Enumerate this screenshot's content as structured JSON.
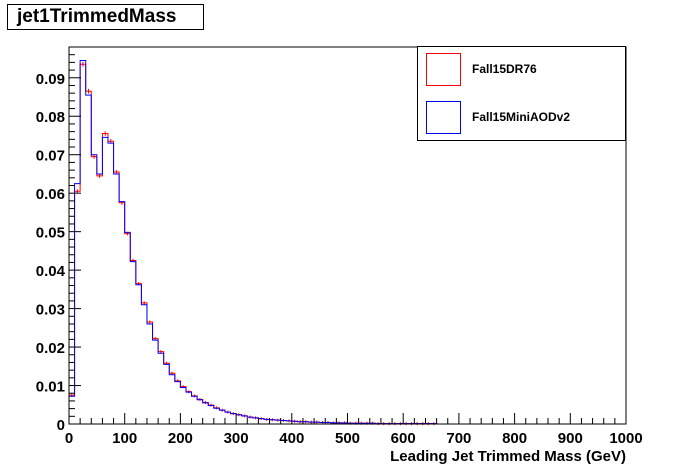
{
  "title": "jet1TrimmedMass",
  "chart_data": {
    "type": "histogram",
    "xlabel": "Leading Jet Trimmed Mass (GeV)",
    "ylabel": "",
    "xlim": [
      0,
      1000
    ],
    "ylim": [
      0,
      0.098
    ],
    "bin_width": 10,
    "x_ticks": [
      0,
      100,
      200,
      300,
      400,
      500,
      600,
      700,
      800,
      900,
      1000
    ],
    "y_ticks": [
      0,
      0.01,
      0.02,
      0.03,
      0.04,
      0.05,
      0.06,
      0.07,
      0.08,
      0.09
    ],
    "legend_position": "top-right",
    "grid": false,
    "series": [
      {
        "name": "Fall15DR76",
        "color": "#ff0000",
        "values": [
          0.0075,
          0.0605,
          0.0935,
          0.0865,
          0.0695,
          0.0645,
          0.0755,
          0.0735,
          0.0655,
          0.0575,
          0.0495,
          0.0425,
          0.0365,
          0.0315,
          0.0265,
          0.0222,
          0.0188,
          0.0158,
          0.0132,
          0.0112,
          0.0097,
          0.0084,
          0.0073,
          0.0064,
          0.0056,
          0.0049,
          0.0042,
          0.0036,
          0.0031,
          0.0027,
          0.0024,
          0.0021,
          0.0018,
          0.0016,
          0.0014,
          0.0012,
          0.0011,
          0.001,
          0.0009,
          0.0008,
          0.0007,
          0.0006,
          0.0006,
          0.0005,
          0.0005,
          0.0004,
          0.0004,
          0.0003,
          0.0003,
          0.0003,
          0.0002,
          0.0002,
          0.0002,
          0.0002,
          0.0002,
          0.0001,
          0.0001,
          0.0001,
          0.0001,
          0.0001,
          0.0001,
          0.0001,
          0.0001,
          0.0001,
          0.0001,
          0.0001,
          0,
          0,
          0,
          0,
          0,
          0,
          0,
          0,
          0,
          0,
          0,
          0,
          0,
          0,
          0,
          0,
          0,
          0,
          0,
          0,
          0,
          0,
          0,
          0,
          0,
          0,
          0,
          0,
          0,
          0,
          0,
          0,
          0,
          0
        ]
      },
      {
        "name": "Fall15MiniAODv2",
        "color": "#0000ff",
        "values": [
          0.0072,
          0.0625,
          0.0945,
          0.0855,
          0.07,
          0.065,
          0.0745,
          0.073,
          0.065,
          0.0578,
          0.0498,
          0.0422,
          0.0362,
          0.031,
          0.026,
          0.0218,
          0.0184,
          0.0155,
          0.0128,
          0.011,
          0.0095,
          0.0083,
          0.0072,
          0.0063,
          0.0055,
          0.0048,
          0.0041,
          0.0036,
          0.0031,
          0.0027,
          0.0024,
          0.0021,
          0.0018,
          0.0016,
          0.0014,
          0.0012,
          0.0011,
          0.001,
          0.0009,
          0.0008,
          0.0007,
          0.0006,
          0.0006,
          0.0005,
          0.0005,
          0.0004,
          0.0004,
          0.0003,
          0.0003,
          0.0003,
          0.0002,
          0.0002,
          0.0002,
          0.0002,
          0.0002,
          0.0001,
          0.0001,
          0.0001,
          0.0001,
          0.0001,
          0.0001,
          0.0001,
          0.0001,
          0.0001,
          0.0001,
          0.0001,
          0,
          0,
          0,
          0,
          0,
          0,
          0,
          0,
          0,
          0,
          0,
          0,
          0,
          0,
          0,
          0,
          0,
          0,
          0,
          0,
          0,
          0,
          0,
          0,
          0,
          0,
          0,
          0,
          0,
          0,
          0,
          0,
          0,
          0
        ]
      }
    ]
  }
}
